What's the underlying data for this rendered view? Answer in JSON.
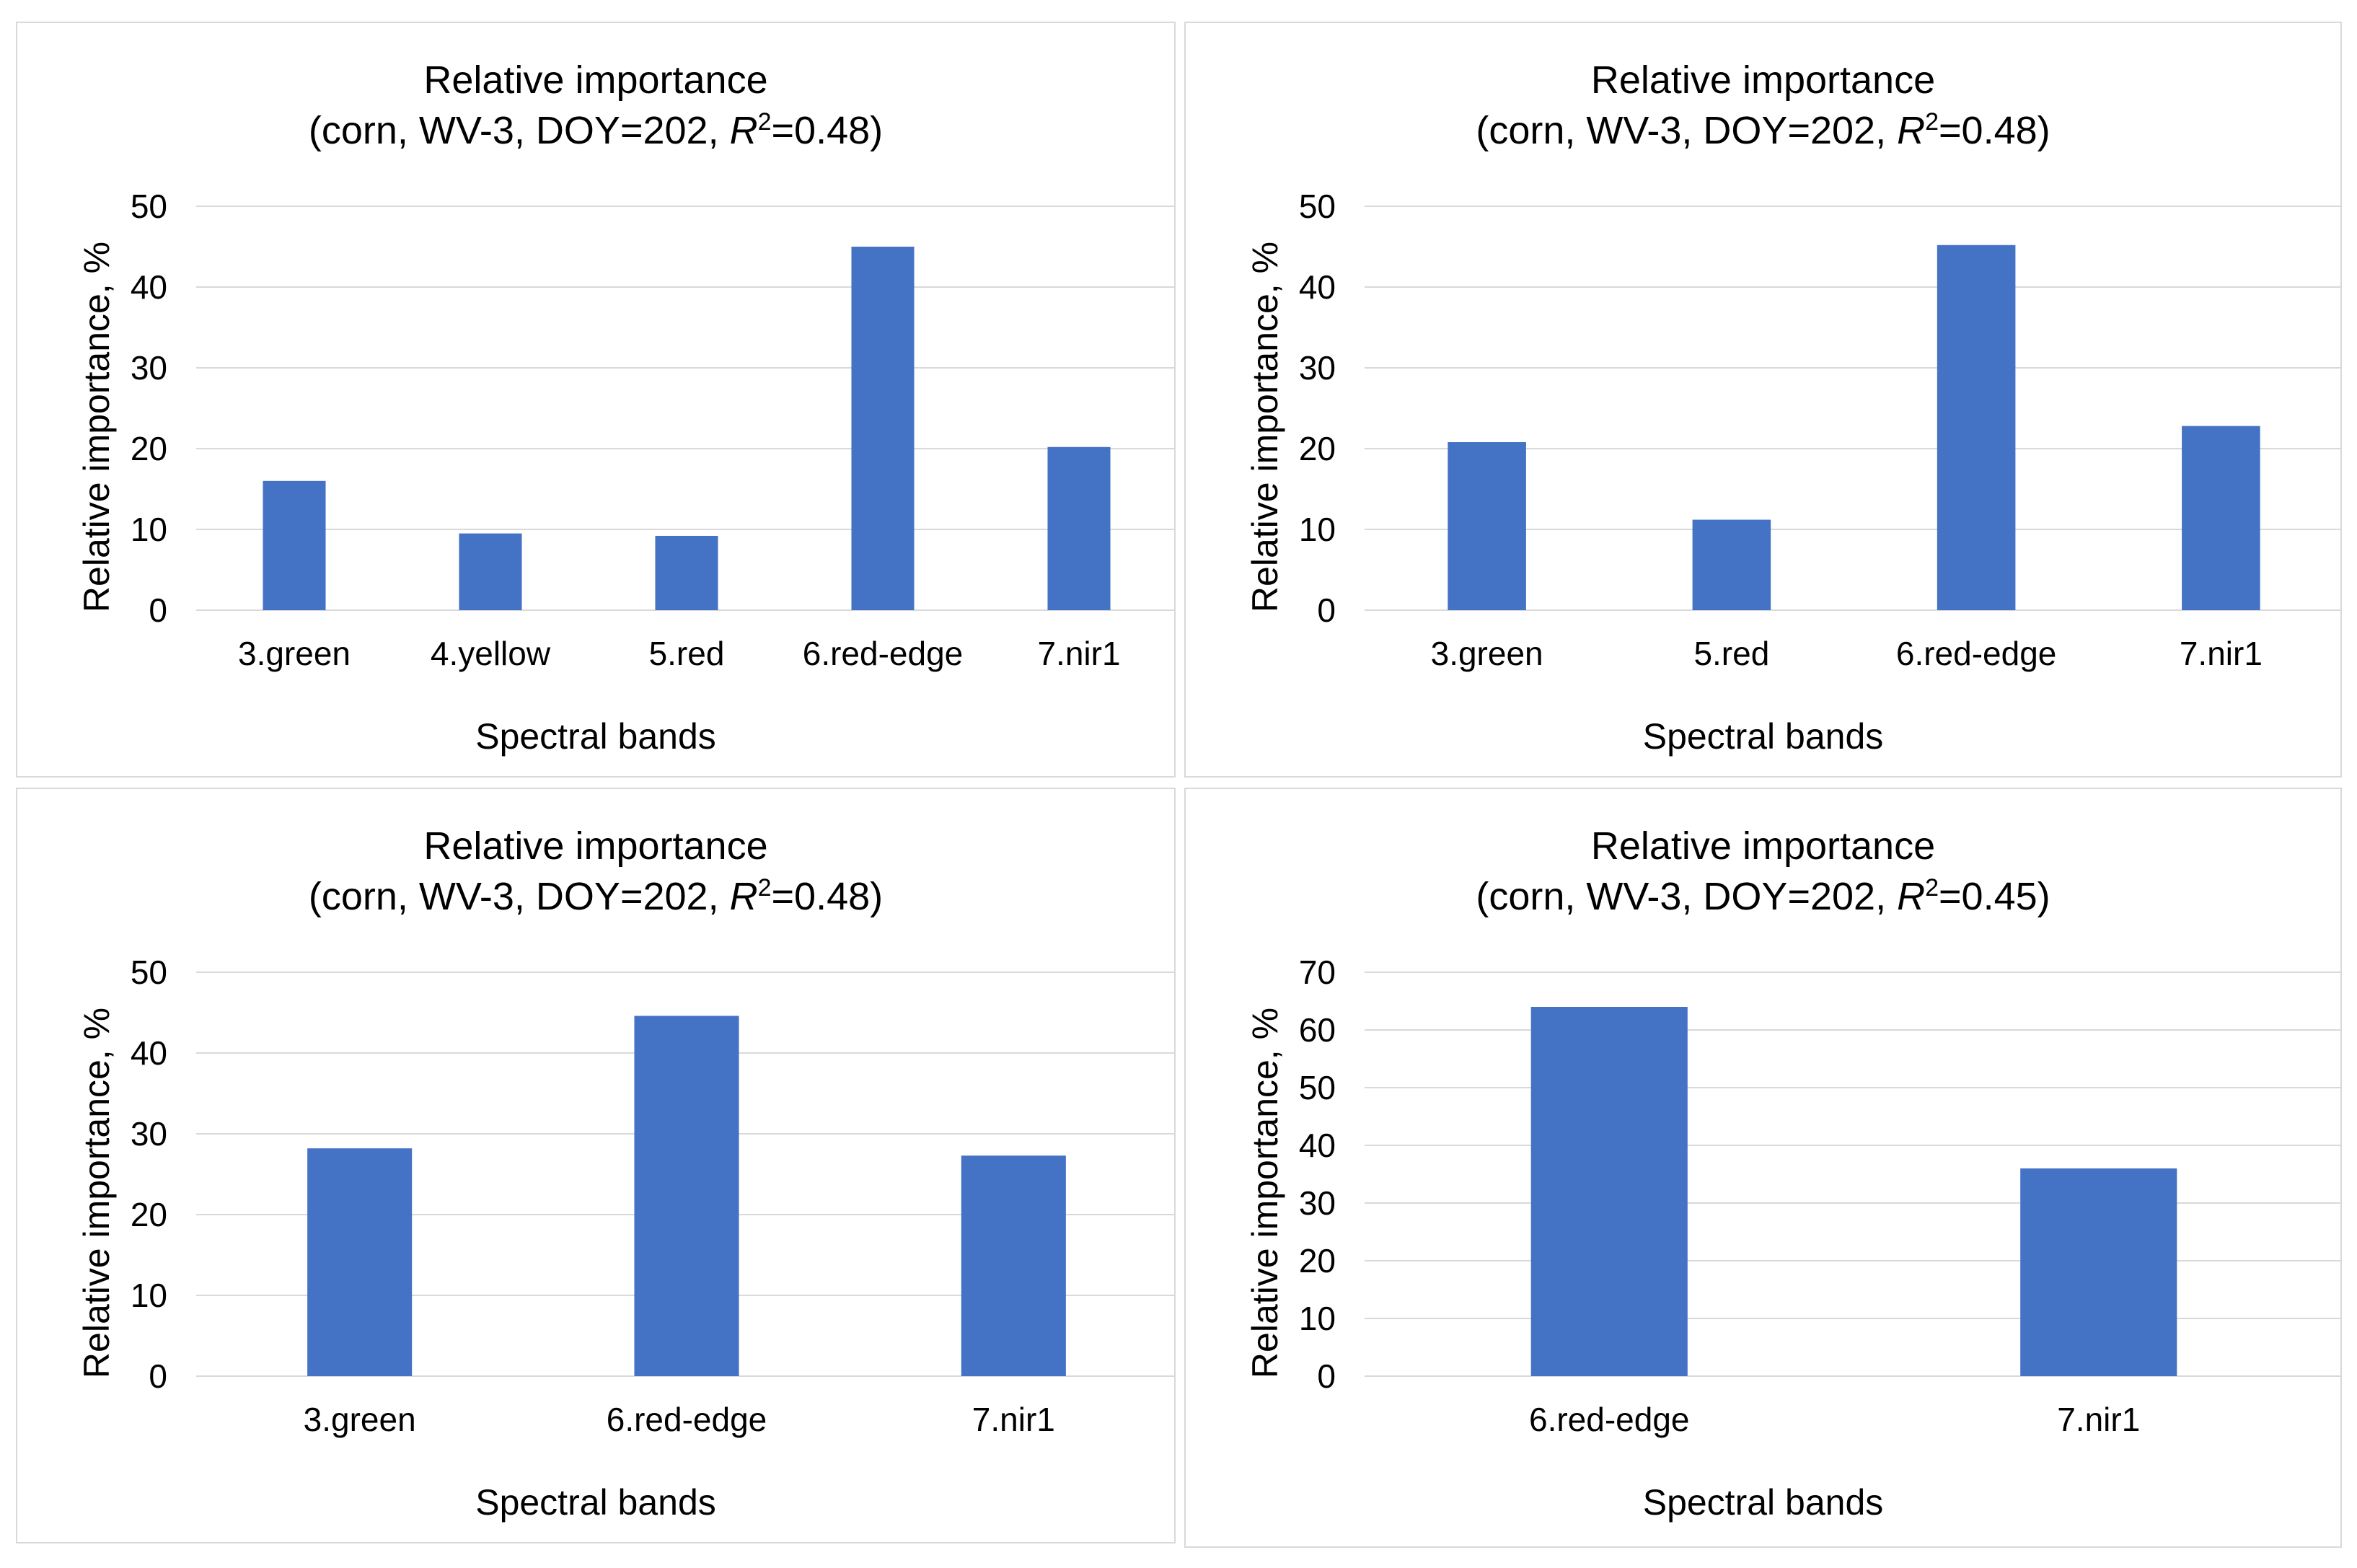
{
  "chart_data": [
    {
      "type": "bar",
      "title": "Relative importance",
      "subtitle": {
        "prefix": "(corn, WV-3, DOY=202, ",
        "var": "R",
        "exp": "2",
        "suffix": "=0.48)"
      },
      "xlabel": "Spectral bands",
      "ylabel": "Relative importance, %",
      "categories": [
        "3.green",
        "4.yellow",
        "5.red",
        "6.red-edge",
        "7.nir1"
      ],
      "values": [
        16,
        9.5,
        9.2,
        45,
        20.2
      ],
      "ylim": [
        0,
        50
      ],
      "yticks": [
        0,
        10,
        20,
        30,
        40,
        50
      ],
      "bar_color": "#4472c4",
      "grid_color": "#d9d9d9"
    },
    {
      "type": "bar",
      "title": "Relative importance",
      "subtitle": {
        "prefix": "(corn, WV-3, DOY=202, ",
        "var": "R",
        "exp": "2",
        "suffix": "=0.48)"
      },
      "xlabel": "Spectral bands",
      "ylabel": "Relative importance, %",
      "categories": [
        "3.green",
        "5.red",
        "6.red-edge",
        "7.nir1"
      ],
      "values": [
        20.8,
        11.2,
        45.2,
        22.8
      ],
      "ylim": [
        0,
        50
      ],
      "yticks": [
        0,
        10,
        20,
        30,
        40,
        50
      ],
      "bar_color": "#4472c4",
      "grid_color": "#d9d9d9"
    },
    {
      "type": "bar",
      "title": "Relative importance",
      "subtitle": {
        "prefix": "(corn, WV-3, DOY=202, ",
        "var": "R",
        "exp": "2",
        "suffix": "=0.48)"
      },
      "xlabel": "Spectral bands",
      "ylabel": "Relative importance, %",
      "categories": [
        "3.green",
        "6.red-edge",
        "7.nir1"
      ],
      "values": [
        28.2,
        44.6,
        27.3
      ],
      "ylim": [
        0,
        50
      ],
      "yticks": [
        0,
        10,
        20,
        30,
        40,
        50
      ],
      "bar_color": "#4472c4",
      "grid_color": "#d9d9d9"
    },
    {
      "type": "bar",
      "title": "Relative importance",
      "subtitle": {
        "prefix": "(corn, WV-3, DOY=202, ",
        "var": "R",
        "exp": "2",
        "suffix": "=0.45)"
      },
      "xlabel": "Spectral bands",
      "ylabel": "Relative importance, %",
      "categories": [
        "6.red-edge",
        "7.nir1"
      ],
      "values": [
        64,
        36
      ],
      "ylim": [
        0,
        70
      ],
      "yticks": [
        0,
        10,
        20,
        30,
        40,
        50,
        60,
        70
      ],
      "bar_color": "#4472c4",
      "grid_color": "#d9d9d9"
    }
  ]
}
